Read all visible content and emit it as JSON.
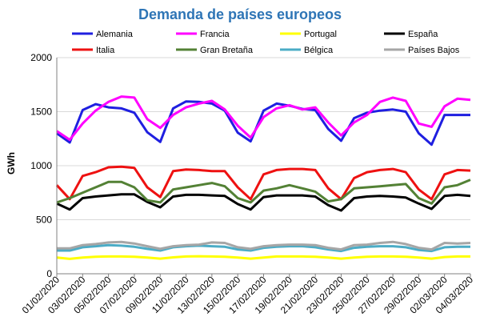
{
  "chart_data": {
    "type": "line",
    "title": "Demanda de países europeos",
    "xlabel": "",
    "ylabel": "GWh",
    "ylim": [
      0,
      2000
    ],
    "yticks": [
      0,
      500,
      1000,
      1500,
      2000
    ],
    "grid": "horizontal",
    "legend": "top",
    "x_start": "01/02/2020",
    "x_end": "04/03/2020",
    "x_ticks": [
      "01/02/2020",
      "03/02/2020",
      "05/02/2020",
      "07/02/2020",
      "09/02/2020",
      "11/02/2020",
      "13/02/2020",
      "15/02/2020",
      "17/02/2020",
      "19/02/2020",
      "21/02/2020",
      "23/02/2020",
      "25/02/2020",
      "27/02/2020",
      "29/02/2020",
      "02/03/2020",
      "04/03/2020"
    ],
    "x": [
      "01/02/2020",
      "02/02/2020",
      "03/02/2020",
      "04/02/2020",
      "05/02/2020",
      "06/02/2020",
      "07/02/2020",
      "08/02/2020",
      "09/02/2020",
      "10/02/2020",
      "11/02/2020",
      "12/02/2020",
      "13/02/2020",
      "14/02/2020",
      "15/02/2020",
      "16/02/2020",
      "17/02/2020",
      "18/02/2020",
      "19/02/2020",
      "20/02/2020",
      "21/02/2020",
      "22/02/2020",
      "23/02/2020",
      "24/02/2020",
      "25/02/2020",
      "26/02/2020",
      "27/02/2020",
      "28/02/2020",
      "29/02/2020",
      "01/03/2020",
      "02/03/2020",
      "03/03/2020",
      "04/03/2020"
    ],
    "series": [
      {
        "name": "Alemania",
        "color": "#1f1fe0",
        "values": [
          1300,
          1215,
          1515,
          1570,
          1540,
          1530,
          1490,
          1310,
          1220,
          1530,
          1595,
          1590,
          1575,
          1510,
          1305,
          1225,
          1510,
          1575,
          1555,
          1525,
          1515,
          1340,
          1230,
          1440,
          1490,
          1510,
          1520,
          1500,
          1300,
          1195,
          1470,
          1470,
          1470
        ]
      },
      {
        "name": "Francia",
        "color": "#ff00ff",
        "values": [
          1320,
          1240,
          1390,
          1510,
          1590,
          1640,
          1630,
          1430,
          1350,
          1470,
          1540,
          1575,
          1600,
          1520,
          1370,
          1260,
          1450,
          1530,
          1560,
          1520,
          1540,
          1400,
          1280,
          1400,
          1470,
          1590,
          1630,
          1600,
          1390,
          1360,
          1550,
          1620,
          1610
        ]
      },
      {
        "name": "Portugal",
        "color": "#ffff00",
        "values": [
          150,
          138,
          150,
          158,
          160,
          160,
          158,
          150,
          140,
          152,
          160,
          162,
          160,
          158,
          150,
          140,
          150,
          160,
          160,
          160,
          158,
          150,
          140,
          150,
          158,
          160,
          160,
          158,
          150,
          140,
          155,
          160,
          160
        ]
      },
      {
        "name": "España",
        "color": "#000000",
        "values": [
          650,
          595,
          700,
          715,
          725,
          735,
          735,
          665,
          615,
          715,
          730,
          730,
          725,
          720,
          645,
          595,
          710,
          725,
          725,
          725,
          715,
          635,
          585,
          700,
          715,
          720,
          715,
          705,
          650,
          600,
          720,
          730,
          720
        ]
      },
      {
        "name": "Italia",
        "color": "#ee1111",
        "values": [
          820,
          690,
          905,
          940,
          985,
          990,
          980,
          800,
          710,
          950,
          965,
          960,
          950,
          950,
          800,
          690,
          920,
          960,
          970,
          970,
          960,
          790,
          690,
          885,
          940,
          960,
          970,
          940,
          780,
          690,
          920,
          960,
          955
        ]
      },
      {
        "name": "Gran Bretaña",
        "color": "#538135",
        "values": [
          660,
          700,
          750,
          800,
          850,
          850,
          800,
          680,
          660,
          780,
          800,
          820,
          840,
          810,
          700,
          660,
          770,
          790,
          820,
          790,
          760,
          670,
          690,
          790,
          800,
          810,
          820,
          830,
          700,
          650,
          800,
          820,
          870
        ]
      },
      {
        "name": "Bélgica",
        "color": "#4bacc6",
        "values": [
          215,
          215,
          245,
          255,
          265,
          260,
          250,
          230,
          215,
          245,
          255,
          260,
          255,
          250,
          225,
          215,
          240,
          250,
          255,
          255,
          245,
          225,
          210,
          240,
          250,
          255,
          255,
          245,
          220,
          210,
          245,
          250,
          250
        ]
      },
      {
        "name": "Países Bajos",
        "color": "#a6a6a6",
        "values": [
          235,
          235,
          265,
          275,
          290,
          295,
          280,
          255,
          230,
          255,
          265,
          270,
          290,
          285,
          245,
          230,
          255,
          265,
          270,
          270,
          265,
          240,
          225,
          265,
          270,
          285,
          295,
          275,
          240,
          225,
          285,
          280,
          285
        ]
      }
    ]
  }
}
